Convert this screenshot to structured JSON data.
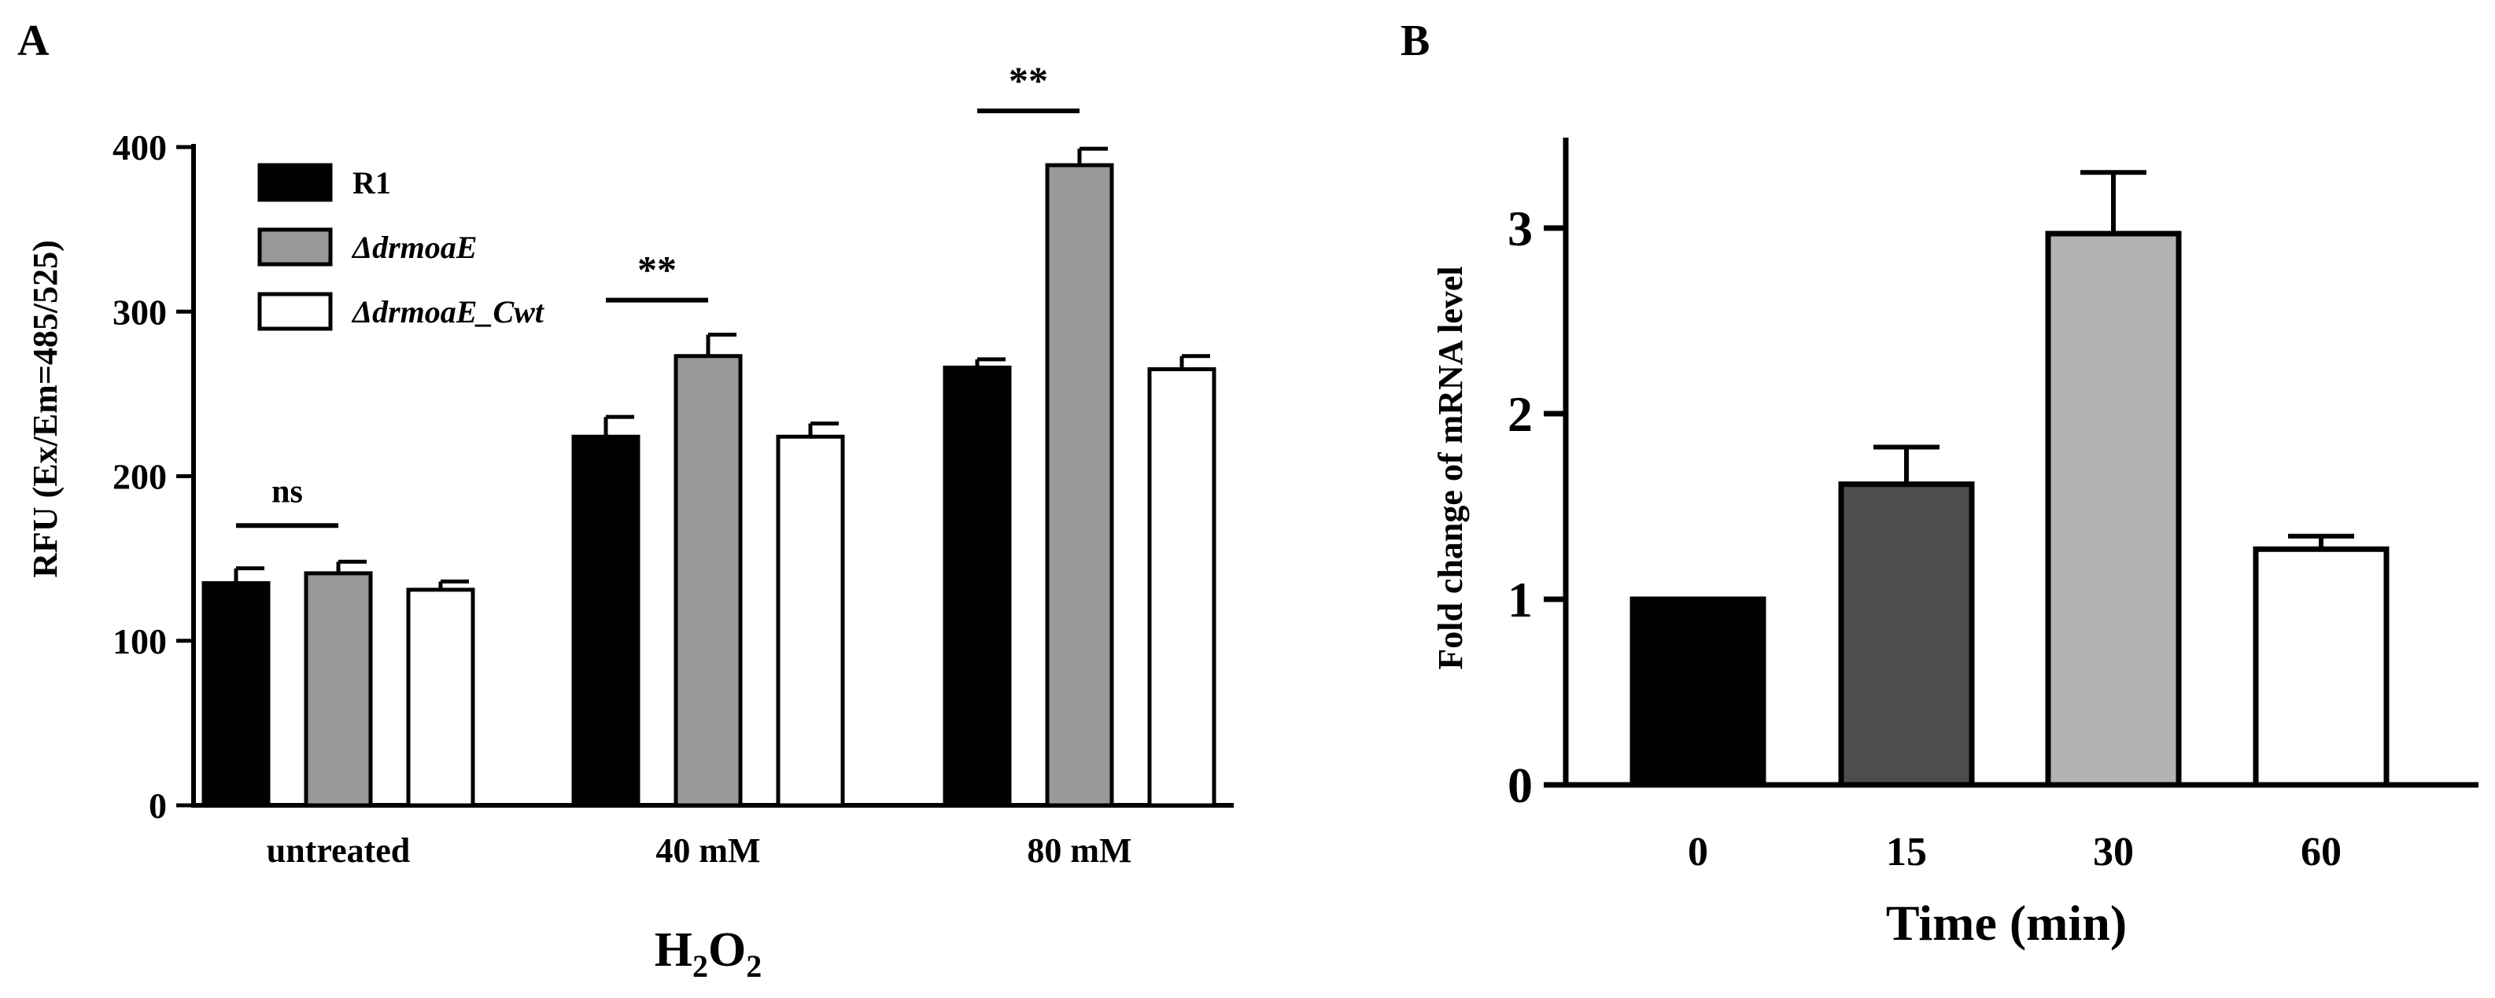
{
  "chart_data": [
    {
      "panel": "A",
      "type": "bar",
      "title": "",
      "xlabel": "H2O2",
      "xlabel_main": "H",
      "xlabel_sub1": "2",
      "xlabel_mid": "O",
      "xlabel_sub2": "2",
      "ylabel": "RFU (Ex/Em=485/525)",
      "ylim": [
        0,
        400
      ],
      "yticks": [
        0,
        100,
        200,
        300,
        400
      ],
      "categories": [
        "untreated",
        "40 mM",
        "80 mM"
      ],
      "series": [
        {
          "name": "R1",
          "color": "#000000",
          "values": [
            135,
            224,
            266
          ],
          "errors": [
            9,
            12,
            5
          ]
        },
        {
          "name": "ΔdrmoaE",
          "color": "#999999",
          "values": [
            141,
            273,
            389
          ],
          "errors": [
            7,
            13,
            10
          ]
        },
        {
          "name": "ΔdrmoaE_Cwt",
          "color": "#ffffff",
          "values": [
            131,
            224,
            265
          ],
          "errors": [
            5,
            8,
            8
          ]
        }
      ],
      "significance": [
        {
          "label": "ns",
          "category": 0,
          "between": [
            0,
            1
          ],
          "y": 170
        },
        {
          "label": "**",
          "category": 1,
          "between": [
            0,
            1
          ],
          "y": 307
        },
        {
          "label": "**",
          "category": 2,
          "between": [
            0,
            1
          ],
          "y": 422
        }
      ]
    },
    {
      "panel": "B",
      "type": "bar",
      "title": "",
      "xlabel": "Time (min)",
      "ylabel": "Fold change of mRNA level",
      "ylim": [
        0,
        3.5
      ],
      "yticks": [
        0,
        1,
        2,
        3
      ],
      "categories": [
        "0",
        "15",
        "30",
        "60"
      ],
      "values": [
        1.0,
        1.62,
        2.97,
        1.27
      ],
      "errors": [
        0,
        0.2,
        0.33,
        0.07
      ],
      "colors": [
        "#000000",
        "#4d4d4d",
        "#b3b3b3",
        "#ffffff"
      ]
    }
  ]
}
